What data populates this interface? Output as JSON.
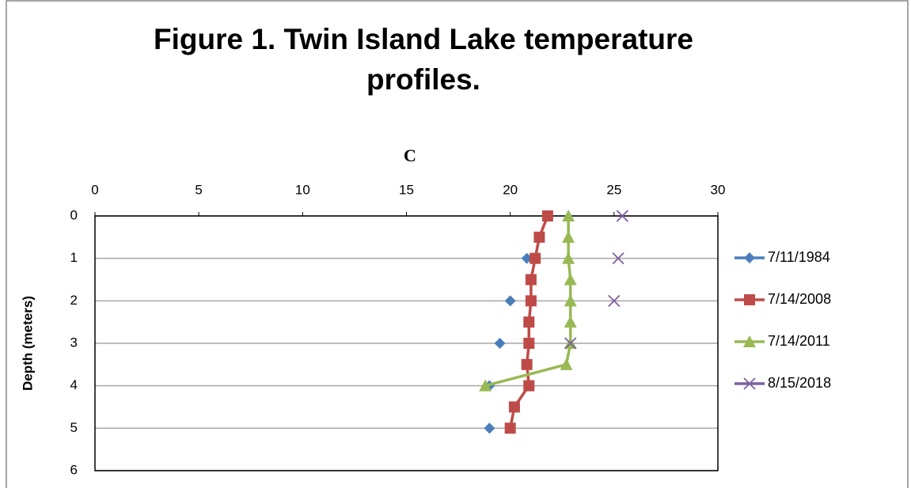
{
  "chart_data": {
    "type": "scatter",
    "title": [
      "Figure 1. Twin Island Lake temperature",
      "profiles."
    ],
    "xlabel": "C",
    "ylabel": "Depth (meters)",
    "xlim": [
      0,
      30
    ],
    "xticks": [
      0,
      5,
      10,
      15,
      20,
      25,
      30
    ],
    "ylim": [
      0,
      6
    ],
    "yticks": [
      0,
      1,
      2,
      3,
      4,
      5,
      6
    ],
    "y_inverted": true,
    "x_axis_position": "top",
    "grid": true,
    "legend": "right",
    "y": [
      0,
      0.5,
      1,
      1.5,
      2,
      2.5,
      3,
      3.5,
      4,
      4.5,
      5
    ],
    "series": [
      {
        "name": "7/11/1984",
        "color": "#4a7ebb",
        "marker": "diamond",
        "x": [
          null,
          null,
          20.8,
          null,
          20,
          null,
          19.5,
          null,
          19,
          null,
          19
        ]
      },
      {
        "name": "7/14/2008",
        "color": "#be4b48",
        "marker": "square",
        "x": [
          21.8,
          21.4,
          21.2,
          21,
          21,
          20.9,
          20.9,
          20.8,
          20.9,
          20.2,
          20
        ]
      },
      {
        "name": "7/14/2011",
        "color": "#98b954",
        "marker": "triangle",
        "x": [
          22.8,
          22.8,
          22.8,
          22.9,
          22.9,
          22.9,
          22.9,
          22.7,
          18.8,
          null,
          null
        ]
      },
      {
        "name": "8/15/2018",
        "color": "#7d60a0",
        "marker": "x",
        "x": [
          25.4,
          null,
          25.2,
          null,
          25,
          null,
          22.9,
          null,
          null,
          null,
          null
        ]
      }
    ]
  }
}
